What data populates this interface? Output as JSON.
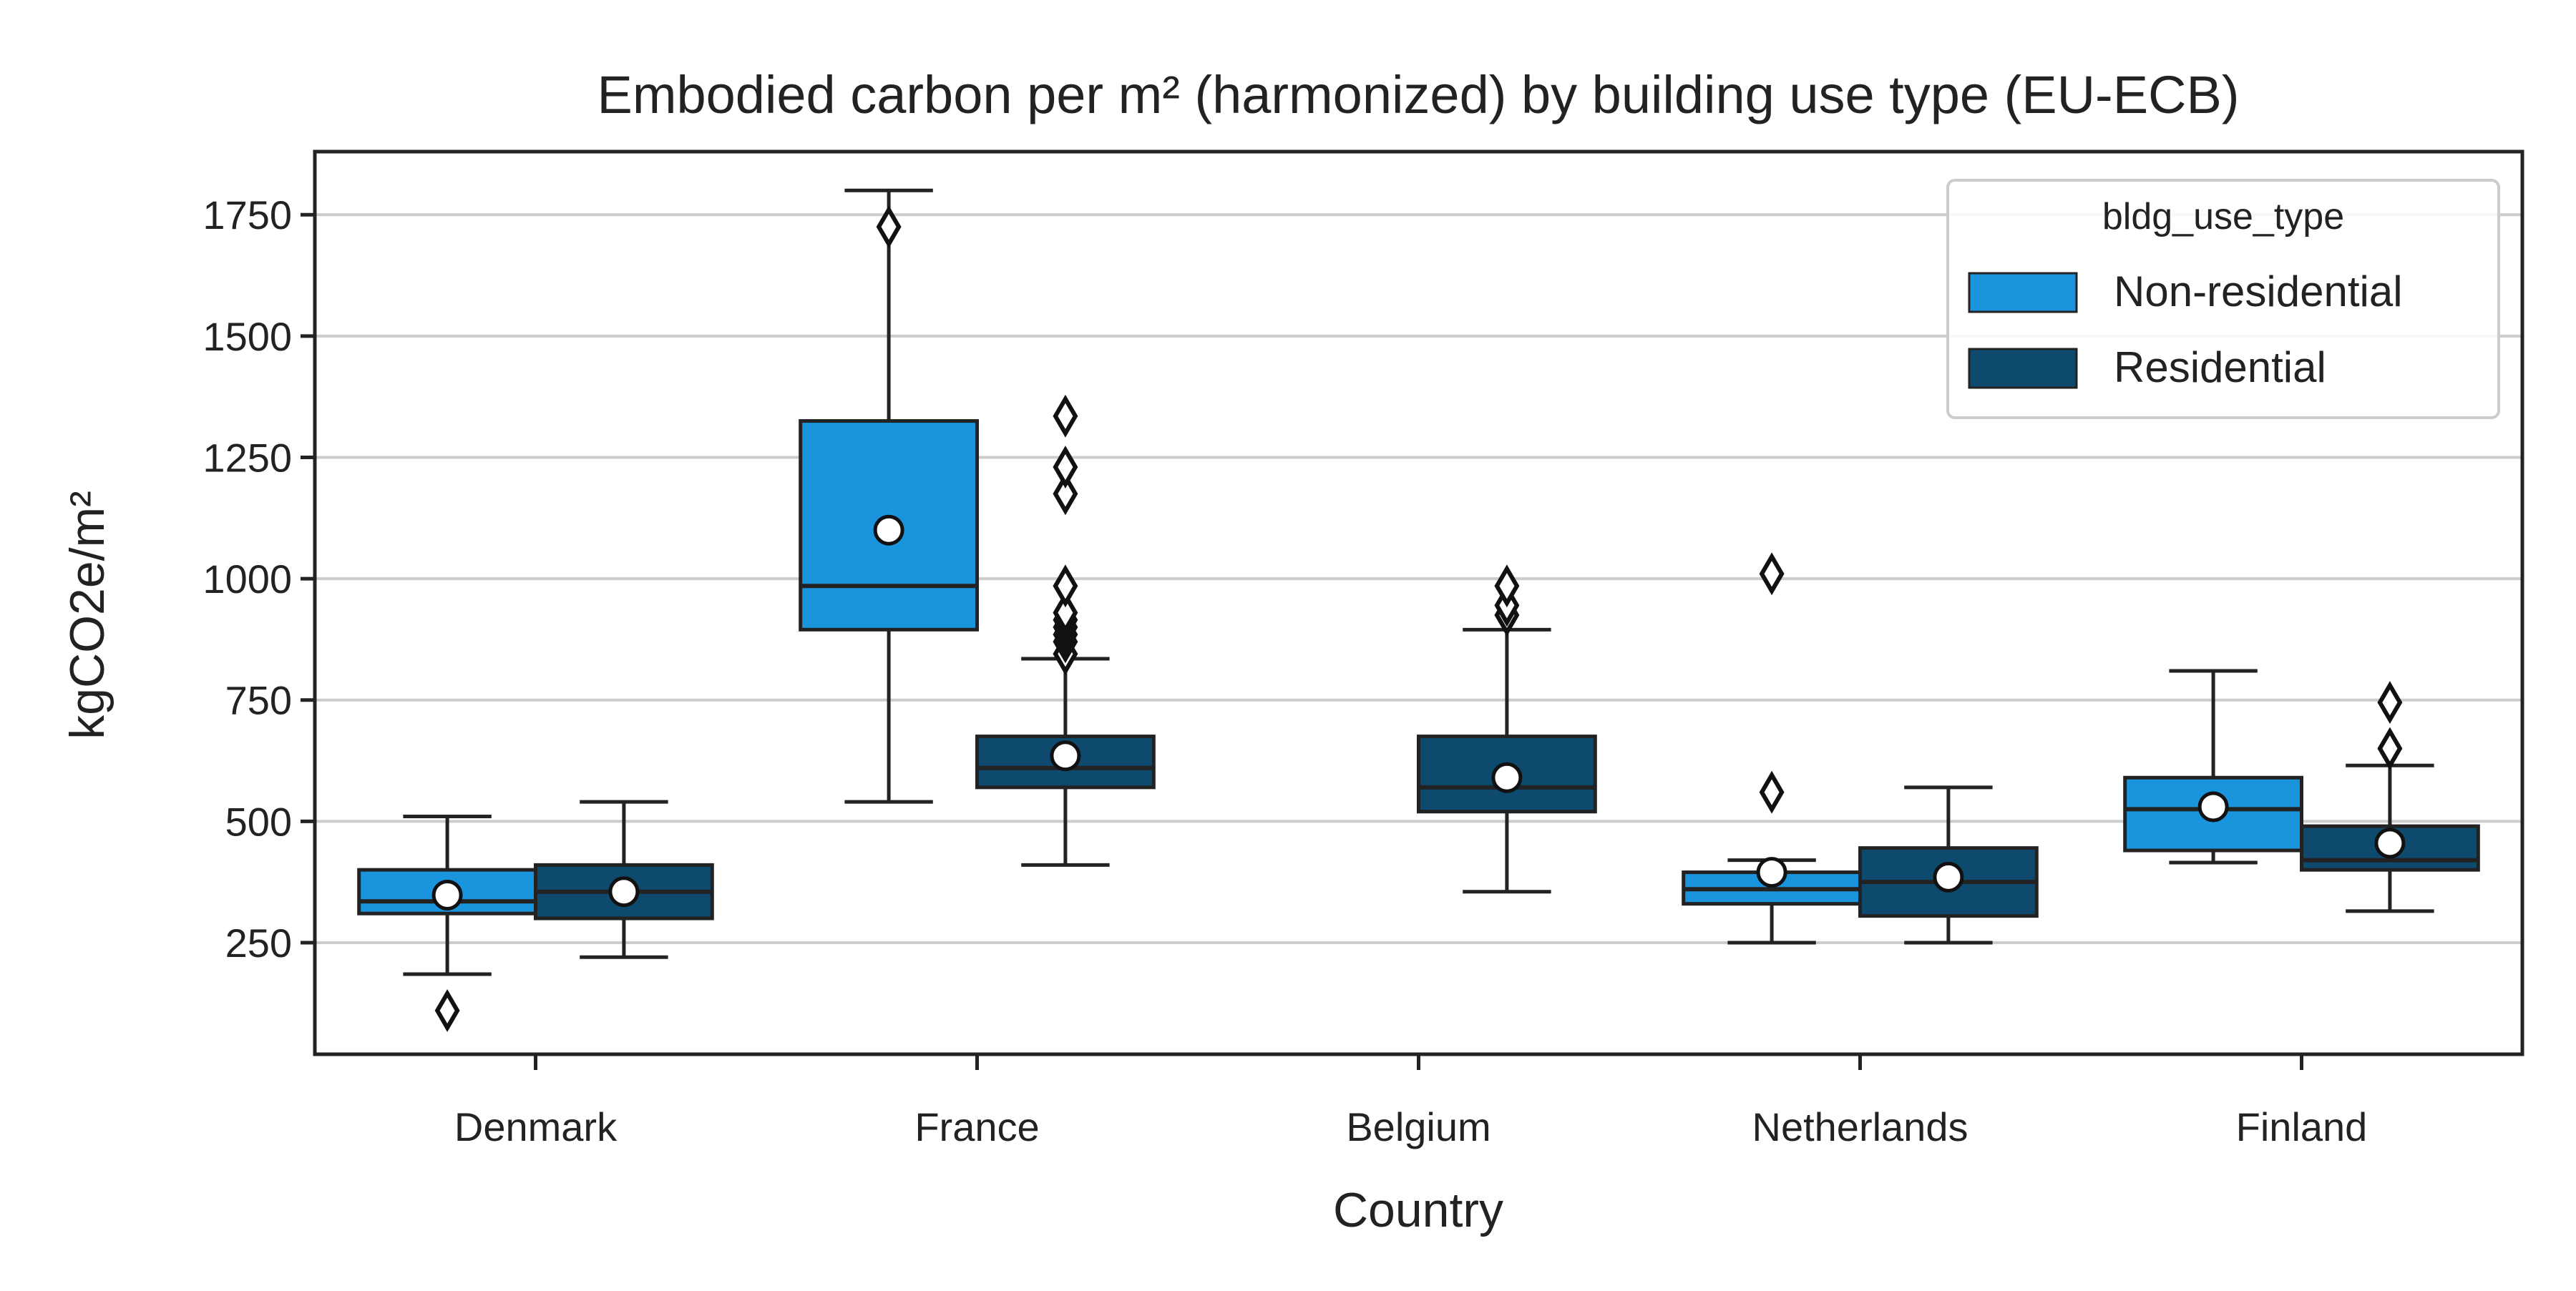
{
  "chart_data": {
    "type": "box",
    "title": "Embodied carbon per m² (harmonized) by building use type (EU-ECB)",
    "xlabel": "Country",
    "ylabel": "kgCO2e/m²",
    "categories": [
      "Denmark",
      "France",
      "Belgium",
      "Netherlands",
      "Finland"
    ],
    "ylim": [
      20,
      1880
    ],
    "yticks": [
      250,
      500,
      750,
      1000,
      1250,
      1500,
      1750
    ],
    "grid": "y",
    "legend": {
      "title": "bldg_use_type",
      "placement": "top-right",
      "entries": [
        "Non-residential",
        "Residential"
      ]
    },
    "colors": {
      "Non-residential": "#1a95dd",
      "Residential": "#0e4a6e",
      "edge": "#222222",
      "grid": "#cccccc",
      "mean_marker": "#ffffff"
    },
    "series": [
      {
        "name": "Non-residential",
        "boxes": [
          {
            "category": "Denmark",
            "whisker_low": 185,
            "q1": 310,
            "median": 335,
            "q3": 400,
            "whisker_high": 510,
            "mean": 348,
            "outliers": [
              110
            ]
          },
          {
            "category": "France",
            "whisker_low": 540,
            "q1": 895,
            "median": 985,
            "q3": 1325,
            "whisker_high": 1800,
            "mean": 1100,
            "outliers": [
              1725
            ]
          },
          {
            "category": "Belgium",
            "empty": true
          },
          {
            "category": "Netherlands",
            "whisker_low": 250,
            "q1": 330,
            "median": 360,
            "q3": 395,
            "whisker_high": 420,
            "mean": 395,
            "outliers": [
              560,
              1010
            ]
          },
          {
            "category": "Finland",
            "whisker_low": 415,
            "q1": 440,
            "median": 525,
            "q3": 590,
            "whisker_high": 810,
            "mean": 530,
            "outliers": []
          }
        ]
      },
      {
        "name": "Residential",
        "boxes": [
          {
            "category": "Denmark",
            "whisker_low": 220,
            "q1": 300,
            "median": 355,
            "q3": 410,
            "whisker_high": 540,
            "mean": 355,
            "outliers": []
          },
          {
            "category": "France",
            "whisker_low": 410,
            "q1": 570,
            "median": 610,
            "q3": 675,
            "whisker_high": 835,
            "mean": 635,
            "outliers": [
              845,
              870,
              885,
              900,
              915,
              930,
              985,
              1175,
              1230,
              1335
            ]
          },
          {
            "category": "Belgium",
            "whisker_low": 355,
            "q1": 520,
            "median": 570,
            "q3": 675,
            "whisker_high": 895,
            "mean": 590,
            "outliers": [
              925,
              945,
              985
            ]
          },
          {
            "category": "Netherlands",
            "whisker_low": 250,
            "q1": 305,
            "median": 375,
            "q3": 445,
            "whisker_high": 570,
            "mean": 385,
            "outliers": []
          },
          {
            "category": "Finland",
            "whisker_low": 315,
            "q1": 400,
            "median": 420,
            "q3": 490,
            "whisker_high": 615,
            "mean": 455,
            "outliers": [
              650,
              745
            ]
          }
        ]
      }
    ]
  }
}
